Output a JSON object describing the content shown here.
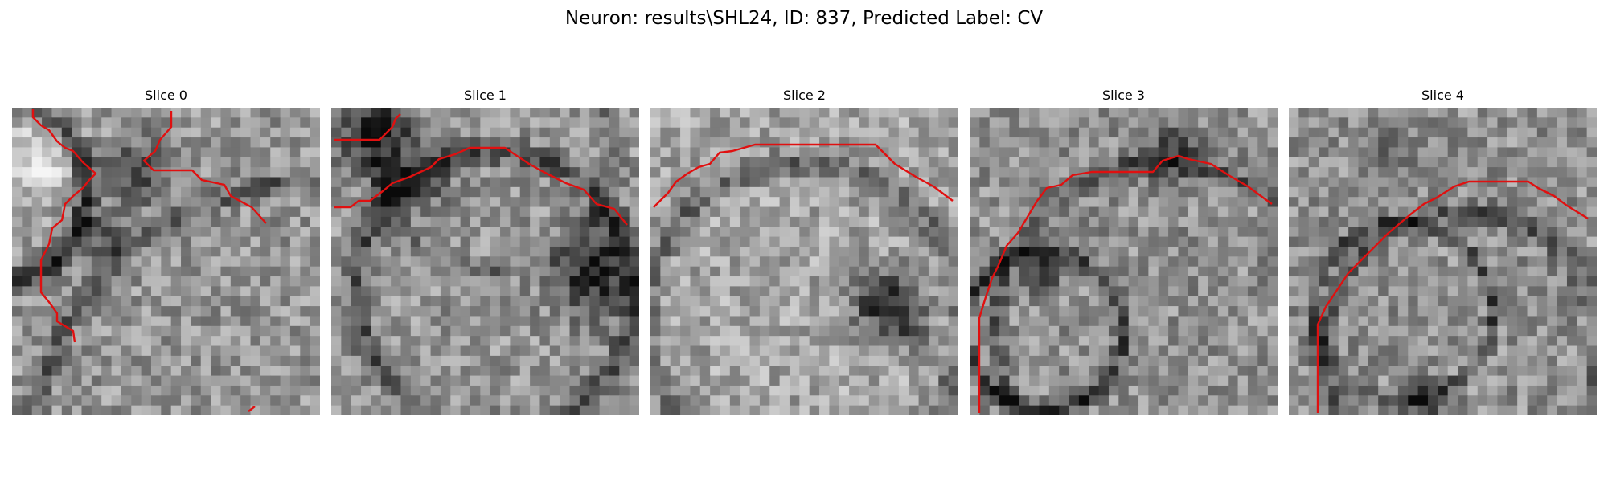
{
  "figure": {
    "title": "Neuron: results\\SHL24, ID: 837, Predicted Label: CV"
  },
  "colors": {
    "contour": "#e01010",
    "background": "#ffffff"
  },
  "slices": [
    {
      "label": "Slice 0"
    },
    {
      "label": "Slice 1"
    },
    {
      "label": "Slice 2"
    },
    {
      "label": "Slice 3"
    },
    {
      "label": "Slice 4"
    }
  ]
}
